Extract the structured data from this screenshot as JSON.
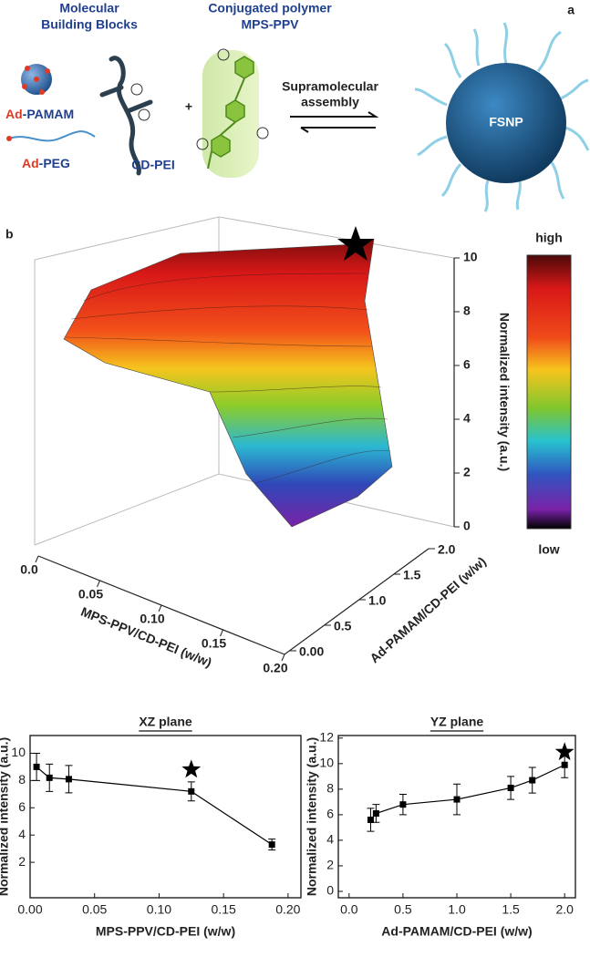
{
  "panel_a": {
    "label": "a",
    "blocks_title": [
      "Molecular",
      "Building Blocks"
    ],
    "polymer_title": [
      "Conjugated polymer",
      "MPS-PPV"
    ],
    "ad_pamam": [
      "Ad",
      "-PAMAM"
    ],
    "ad_peg": [
      "Ad",
      "-PEG"
    ],
    "cd_pei": "CD-PEI",
    "plus": "+",
    "arrow_label": [
      "Supramolecular",
      "assembly"
    ],
    "particle": "FSNP"
  },
  "chart_data": [
    {
      "type": "surface3d",
      "panel_label": "b",
      "x_label": "MPS-PPV/CD-PEI (w/w)",
      "y_label": "Ad-PAMAM/CD-PEI (w/w)",
      "z_label": "Normalized intensity (a.u.)",
      "xlim": [
        0,
        0.2
      ],
      "ylim": [
        0,
        2
      ],
      "zlim": [
        0,
        10
      ],
      "xticks": [
        {
          "value": 0,
          "label": "0.0"
        },
        0.05,
        {
          "value": 0.1,
          "label": "0.10"
        },
        0.15,
        {
          "value": 0.2,
          "label": "0.20"
        }
      ],
      "yticks": [
        {
          "value": 0,
          "label": "0.00"
        },
        0.5,
        {
          "value": 1,
          "label": "1.0"
        },
        1.5,
        {
          "value": 2,
          "label": "2.0"
        }
      ],
      "zticks": [
        0,
        2,
        4,
        6,
        8,
        10
      ],
      "colorbar_labels": [
        "high",
        "low"
      ]
    },
    {
      "type": "line",
      "title": "XZ plane",
      "x_label": "MPS-PPV/CD-PEI (w/w)",
      "y_label": "Normalized intensity (a.u.)",
      "x": [
        0.005,
        0.015,
        0.03,
        0.125,
        0.1875
      ],
      "values": [
        9.0,
        8.2,
        8.1,
        7.2,
        3.3
      ],
      "errors": [
        1.0,
        1.0,
        1.0,
        0.7,
        0.4
      ],
      "highlight": {
        "x": 0.125,
        "y": 8.8
      },
      "color": "#000000",
      "xlim": [
        0,
        0.21
      ],
      "ylim": [
        -0.6,
        11.3
      ],
      "xticks": [
        {
          "value": 0,
          "label": "0.00"
        },
        0.05,
        {
          "value": 0.1,
          "label": "0.10"
        },
        0.15,
        {
          "value": 0.2,
          "label": "0.20"
        }
      ],
      "yticks": [
        2,
        4,
        6,
        8,
        10
      ]
    },
    {
      "type": "line",
      "title": "YZ plane",
      "x_label": "Ad-PAMAM/CD-PEI (w/w)",
      "y_label": "Normalized intensity (a.u.)",
      "x": [
        0.2,
        0.25,
        0.5,
        1.0,
        1.5,
        1.7,
        2.0
      ],
      "values": [
        5.6,
        6.1,
        6.8,
        7.2,
        8.1,
        8.7,
        9.9
      ],
      "errors": [
        0.9,
        0.7,
        0.8,
        1.2,
        0.9,
        1.0,
        1.0
      ],
      "highlight": {
        "x": 2.0,
        "y": 10.9
      },
      "color": "#000000",
      "xlim": [
        -0.1,
        2.1
      ],
      "ylim": [
        -0.5,
        12.2
      ],
      "xticks": [
        {
          "value": 0,
          "label": "0.0"
        },
        0.5,
        {
          "value": 1,
          "label": "1.0"
        },
        1.5,
        {
          "value": 2,
          "label": "2.0"
        }
      ],
      "yticks": [
        0,
        2,
        4,
        6,
        8,
        10,
        12
      ]
    }
  ]
}
